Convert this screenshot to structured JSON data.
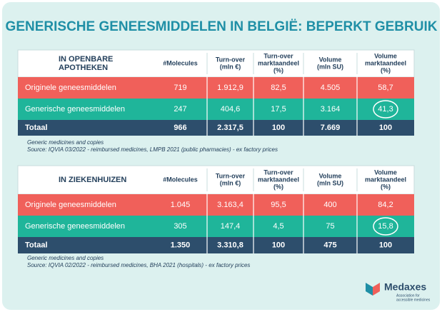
{
  "title": "GENERISCHE GENEESMIDDELEN IN BELGIË: BEPERKT GEBRUIK",
  "tables": [
    {
      "heading": [
        "IN OPENBARE",
        "APOTHEKEN"
      ],
      "columns": [
        [
          "#Molecules"
        ],
        [
          "Turn-over",
          "(mln €)"
        ],
        [
          "Turn-over",
          "marktaandeel",
          "(%)"
        ],
        [
          "Volume",
          "(mln SU)"
        ],
        [
          "Volume",
          "marktaandeel",
          "(%)"
        ]
      ],
      "rows": [
        {
          "label": "Originele geneesmiddelen",
          "cells": [
            "719",
            "1.912,9",
            "82,5",
            "4.505",
            "58,7"
          ]
        },
        {
          "label": "Generische geneesmiddelen",
          "cells": [
            "247",
            "404,6",
            "17,5",
            "3.164",
            "41,3"
          ]
        },
        {
          "label": "Totaal",
          "cells": [
            "966",
            "2.317,5",
            "100",
            "7.669",
            "100"
          ]
        }
      ],
      "notes": [
        "Generic medicines and copies",
        "Source: IQVIA 03/2022 - reimbursed medicines, LMPB 2021 (public pharmacies) - ex factory prices"
      ]
    },
    {
      "heading": [
        "IN ZIEKENHUIZEN"
      ],
      "columns": [
        [
          "#Molecules"
        ],
        [
          "Turn-over",
          "(mln €)"
        ],
        [
          "Turn-over",
          "marktaandeel",
          "(%)"
        ],
        [
          "Volume",
          "(mln SU)"
        ],
        [
          "Volume",
          "marktaandeel",
          "(%)"
        ]
      ],
      "rows": [
        {
          "label": "Originele geneesmiddelen",
          "cells": [
            "1.045",
            "3.163,4",
            "95,5",
            "400",
            "84,2"
          ]
        },
        {
          "label": "Generische geneesmiddelen",
          "cells": [
            "305",
            "147,4",
            "4,5",
            "75",
            "15,8"
          ]
        },
        {
          "label": "Totaal",
          "cells": [
            "1.350",
            "3.310,8",
            "100",
            "475",
            "100"
          ]
        }
      ],
      "notes": [
        "Generic medicines and copies",
        "Source: IQVIA 02/2022 - reimbursed medicines, BHA 2021 (hospitals) - ex factory prices"
      ]
    }
  ],
  "logo": {
    "name": "Medaxes",
    "tagline": [
      "Association for",
      "accessible medicines"
    ]
  }
}
